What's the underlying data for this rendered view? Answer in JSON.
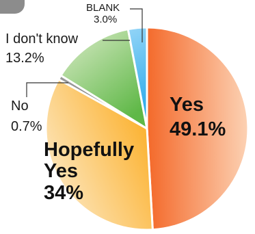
{
  "chart_data": {
    "type": "pie",
    "slices": [
      {
        "label": "Yes",
        "value": 49.1,
        "display": "49.1%",
        "color": "#f4692a",
        "color_light": "#fcd2b4"
      },
      {
        "label": "Hopefully Yes",
        "value": 34,
        "display": "34%",
        "color": "#fbb12e",
        "color_light": "#fde6bd"
      },
      {
        "label": "No",
        "value": 0.7,
        "display": "0.7%",
        "color": "#6b6b6b",
        "color_light": "#9a9a9a"
      },
      {
        "label": "I don't know",
        "value": 13.2,
        "display": "13.2%",
        "color": "#5fb847",
        "color_light": "#c7e3b4"
      },
      {
        "label": "BLANK",
        "value": 3.0,
        "display": "3.0%",
        "color": "#1fa5e8",
        "color_light": "#8fd3f7"
      }
    ]
  },
  "labels": {
    "yes": "Yes",
    "yes_pct": "49.1%",
    "hopefully_line1": "Hopefully",
    "hopefully_line2": "Yes",
    "hopefully_pct": "34%",
    "no": "No",
    "no_pct": "0.7%",
    "idk": "I don't know",
    "idk_pct": "13.2%",
    "blank": "BLANK",
    "blank_pct": "3.0%"
  }
}
